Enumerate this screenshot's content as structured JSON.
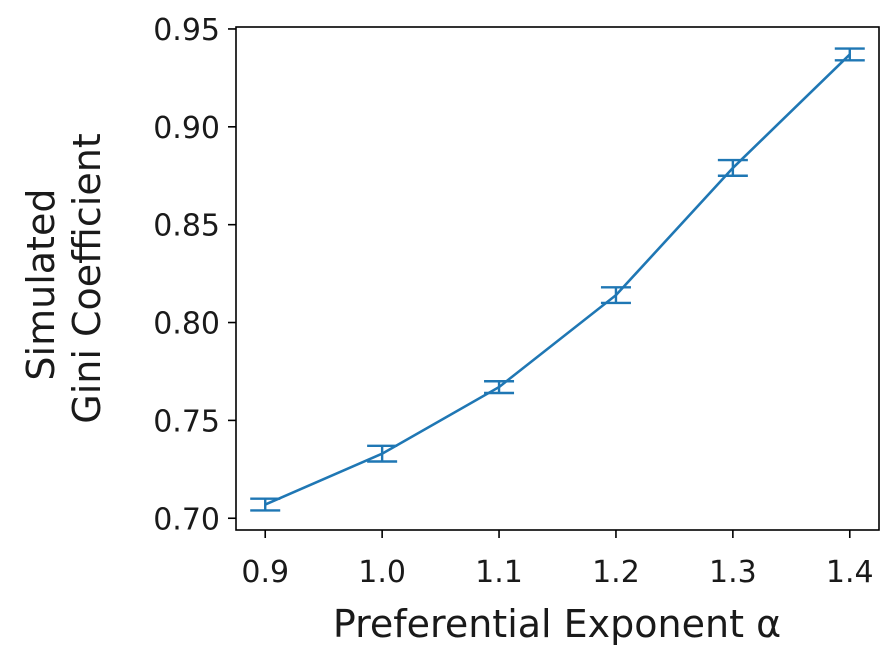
{
  "chart_data": {
    "type": "line",
    "title": "",
    "xlabel": "Preferential Exponent α",
    "ylabel_lines": [
      "Simulated",
      "Gini Coefficient"
    ],
    "x": [
      0.9,
      1.0,
      1.1,
      1.2,
      1.3,
      1.4
    ],
    "series": [
      {
        "values": [
          0.707,
          0.733,
          0.767,
          0.814,
          0.879,
          0.937
        ],
        "error": [
          0.003,
          0.004,
          0.003,
          0.004,
          0.004,
          0.003
        ],
        "color": "#1f77b4"
      }
    ],
    "xticks": [
      0.9,
      1.0,
      1.1,
      1.2,
      1.3,
      1.4
    ],
    "xtick_labels": [
      "0.9",
      "1.0",
      "1.1",
      "1.2",
      "1.3",
      "1.4"
    ],
    "yticks": [
      0.7,
      0.75,
      0.8,
      0.85,
      0.9,
      0.95
    ],
    "ytick_labels": [
      "0.70",
      "0.75",
      "0.80",
      "0.85",
      "0.90",
      "0.95"
    ],
    "xlim": [
      0.875,
      1.425
    ],
    "ylim": [
      0.694,
      0.951
    ],
    "grid": false,
    "legend": "none"
  }
}
